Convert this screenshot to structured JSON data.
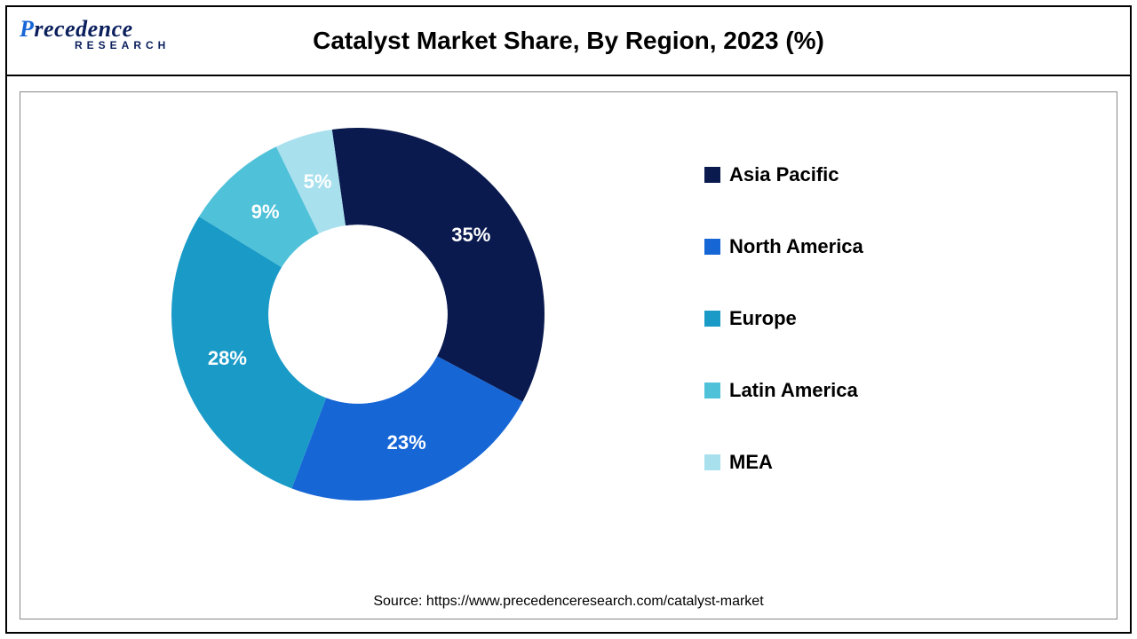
{
  "logo": {
    "main": "Precedence",
    "sub": "RESEARCH"
  },
  "chart": {
    "type": "donut",
    "title": "Catalyst Market Share, By Region, 2023 (%)",
    "inner_radius_ratio": 0.48,
    "background_color": "#ffffff",
    "slices": [
      {
        "label": "Asia Pacific",
        "value": 35,
        "color": "#0a1a4f",
        "display": "35%"
      },
      {
        "label": "North America",
        "value": 23,
        "color": "#1666d6",
        "display": "23%"
      },
      {
        "label": "Europe",
        "value": 28,
        "color": "#1a9bc7",
        "display": "28%"
      },
      {
        "label": "Latin America",
        "value": 9,
        "color": "#4fc1d9",
        "display": "9%"
      },
      {
        "label": "MEA",
        "value": 5,
        "color": "#a8e0ee",
        "display": "5%"
      }
    ],
    "label_fontsize": 22,
    "label_color": "#ffffff",
    "legend_fontsize": 22,
    "legend_fontweight": "bold",
    "title_fontsize": 28,
    "title_fontweight": "bold",
    "start_angle_deg": -8
  },
  "source": "Source: https://www.precedenceresearch.com/catalyst-market"
}
